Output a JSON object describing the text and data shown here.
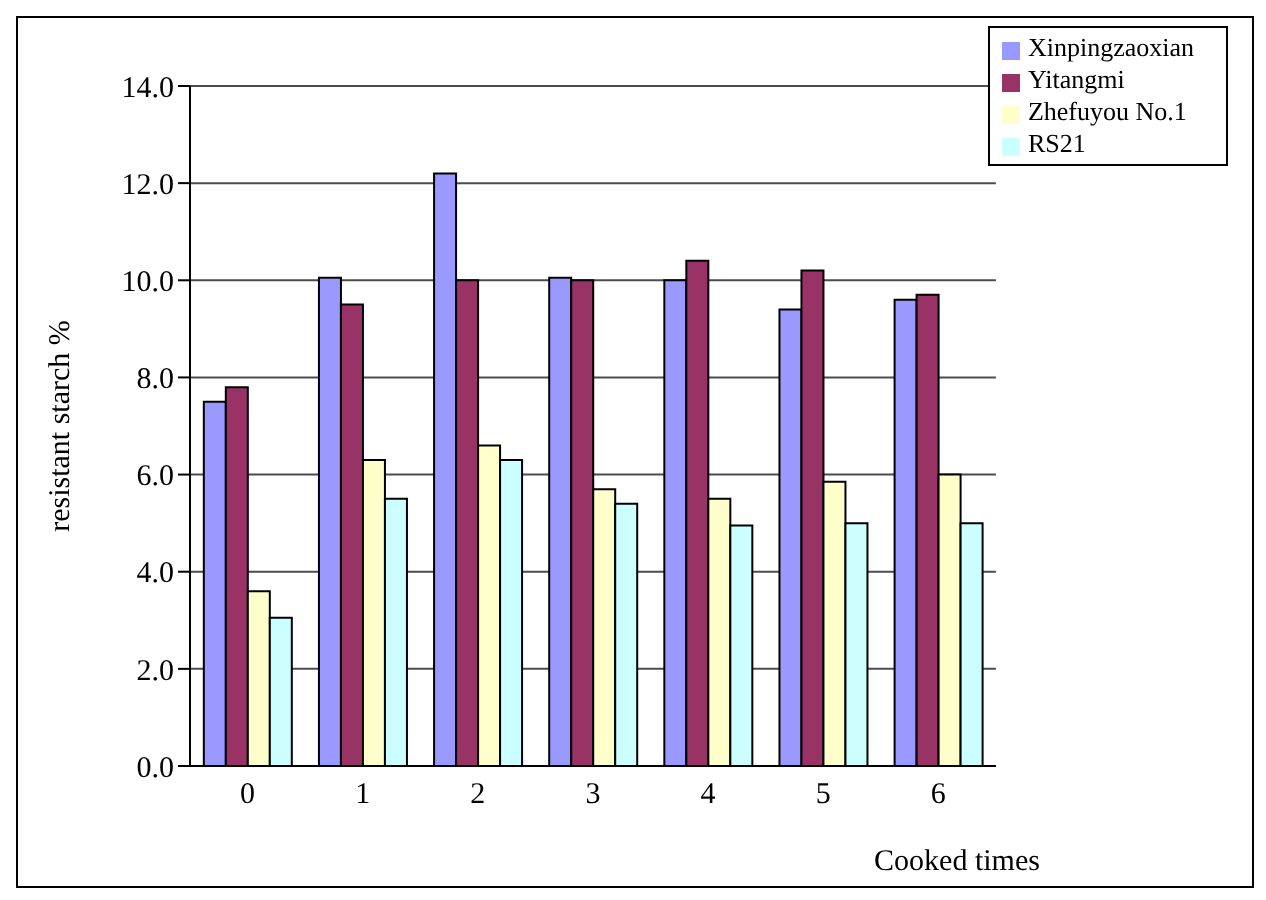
{
  "chart_data": {
    "type": "bar",
    "xlabel": "Cooked times",
    "ylabel": "resistant starch %",
    "categories": [
      "0",
      "1",
      "2",
      "3",
      "4",
      "5",
      "6"
    ],
    "series": [
      {
        "name": "Xinpingzaoxian",
        "color": "#9999ff",
        "values": [
          7.5,
          10.05,
          12.2,
          10.05,
          10.0,
          9.4,
          9.6
        ]
      },
      {
        "name": "Yitangmi",
        "color": "#993366",
        "values": [
          7.8,
          9.5,
          10.0,
          10.0,
          10.4,
          10.2,
          9.7
        ]
      },
      {
        "name": "Zhefuyou No.1",
        "color": "#ffffcc",
        "values": [
          3.6,
          6.3,
          6.6,
          5.7,
          5.5,
          5.85,
          6.0
        ]
      },
      {
        "name": "RS21",
        "color": "#ccffff",
        "values": [
          3.05,
          5.5,
          6.3,
          5.4,
          4.95,
          5.0,
          5.0
        ]
      }
    ],
    "ylim": [
      0,
      14
    ],
    "yticks": [
      {
        "value": 0,
        "label": "0.0"
      },
      {
        "value": 2,
        "label": "2.0"
      },
      {
        "value": 4,
        "label": "4.0"
      },
      {
        "value": 6,
        "label": "6.0"
      },
      {
        "value": 8,
        "label": "8.0"
      },
      {
        "value": 10,
        "label": "10.0"
      },
      {
        "value": 12,
        "label": "12.0"
      },
      {
        "value": 14,
        "label": "14.0"
      }
    ],
    "grid": "y",
    "legend": "top right"
  }
}
